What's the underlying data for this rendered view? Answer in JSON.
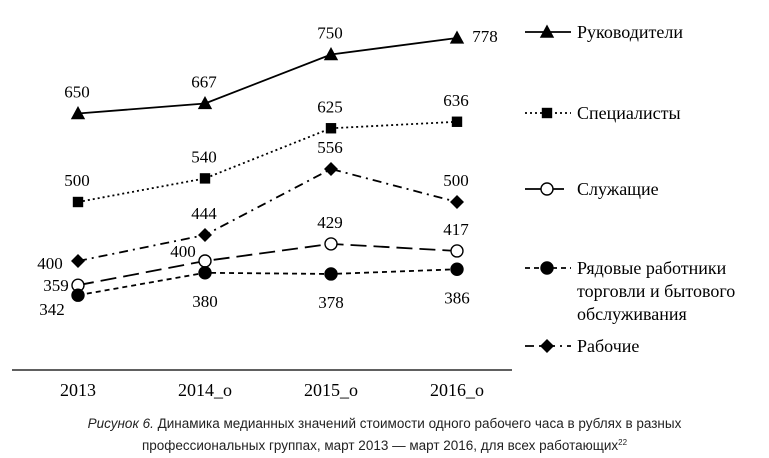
{
  "chart_data": {
    "type": "line",
    "categories": [
      "2013",
      "2014_o",
      "2015_o",
      "2016_o"
    ],
    "series": [
      {
        "name": "Руководители",
        "values": [
          650,
          667,
          750,
          778
        ],
        "marker": "triangle",
        "line_style": "solid"
      },
      {
        "name": "Специалисты",
        "values": [
          500,
          540,
          625,
          636
        ],
        "marker": "square",
        "line_style": "dotted"
      },
      {
        "name": "Служащие",
        "values": [
          359,
          400,
          429,
          417
        ],
        "marker": "open-circle",
        "line_style": "long-dash"
      },
      {
        "name": [
          "Рядовые работники",
          "торговли и бытового",
          "обслуживания"
        ],
        "values": [
          342,
          380,
          378,
          386
        ],
        "marker": "filled-circle",
        "line_style": "short-dash"
      },
      {
        "name": "Рабочие",
        "values": [
          400,
          444,
          556,
          500
        ],
        "marker": "diamond",
        "line_style": "dash-dot"
      }
    ],
    "grid": false,
    "legend_position": "right",
    "colors": {
      "line": "#000000"
    }
  },
  "caption": {
    "prefix": "Рисунок 6.",
    "line1": " Динамика медианных значений стоимости одного рабочего часа в рублях в разных",
    "line2": "профессиональных группах, март 2013 — март 2016, для всех работающих",
    "footnote": "22"
  }
}
